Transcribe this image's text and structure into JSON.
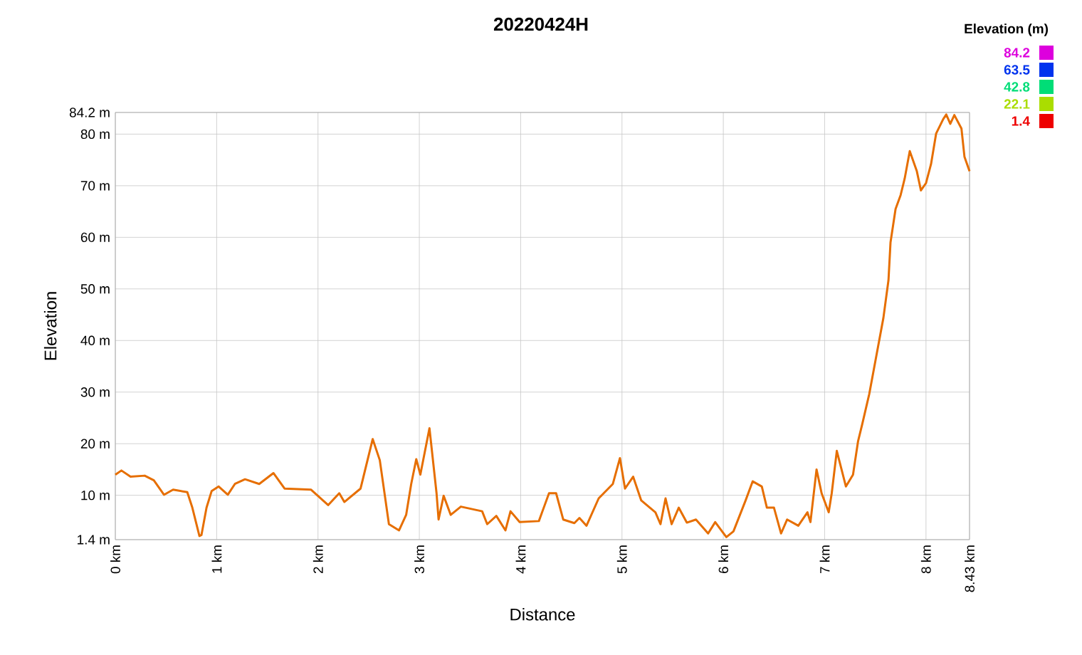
{
  "chart_data": {
    "type": "line",
    "title": "20220424H",
    "xlabel": "Distance",
    "ylabel": "Elevation",
    "clabel": "Elevation (m)",
    "x": [
      0,
      0.06,
      0.15,
      0.29,
      0.38,
      0.48,
      0.57,
      0.71,
      0.76,
      0.83,
      0.85,
      0.9,
      0.95,
      1.02,
      1.11,
      1.18,
      1.28,
      1.42,
      1.56,
      1.67,
      1.93,
      2.1,
      2.21,
      2.26,
      2.42,
      2.54,
      2.61,
      2.7,
      2.8,
      2.87,
      2.92,
      2.97,
      3.01,
      3.1,
      3.17,
      3.19,
      3.24,
      3.31,
      3.41,
      3.62,
      3.67,
      3.76,
      3.85,
      3.9,
      3.99,
      4.18,
      4.28,
      4.35,
      4.42,
      4.53,
      4.58,
      4.65,
      4.77,
      4.91,
      4.98,
      5.03,
      5.11,
      5.19,
      5.33,
      5.38,
      5.43,
      5.49,
      5.56,
      5.64,
      5.73,
      5.85,
      5.92,
      6.03,
      6.1,
      6.22,
      6.29,
      6.38,
      6.43,
      6.5,
      6.57,
      6.63,
      6.74,
      6.83,
      6.86,
      6.92,
      6.97,
      7.04,
      7.07,
      7.12,
      7.21,
      7.28,
      7.33,
      7.37,
      7.44,
      7.51,
      7.58,
      7.63,
      7.65,
      7.7,
      7.75,
      7.79,
      7.84,
      7.91,
      7.95,
      8.0,
      8.05,
      8.1,
      8.17,
      8.2,
      8.24,
      8.28,
      8.35,
      8.38,
      8.43
    ],
    "values": [
      14.0,
      14.8,
      13.6,
      13.8,
      12.9,
      10.1,
      11.1,
      10.6,
      7.6,
      2.1,
      2.3,
      7.6,
      10.8,
      11.7,
      10.1,
      12.2,
      13.1,
      12.2,
      14.3,
      11.3,
      11.1,
      8.1,
      10.4,
      8.7,
      11.3,
      20.9,
      16.8,
      4.4,
      3.2,
      6.2,
      12.2,
      17.0,
      14.0,
      23.0,
      10.4,
      5.3,
      9.9,
      6.2,
      7.8,
      6.9,
      4.4,
      6.0,
      3.2,
      6.9,
      4.8,
      5.0,
      10.4,
      10.4,
      5.3,
      4.6,
      5.6,
      4.1,
      9.4,
      12.2,
      17.2,
      11.3,
      13.6,
      9.0,
      6.7,
      4.4,
      9.4,
      4.4,
      7.6,
      4.7,
      5.3,
      2.6,
      4.8,
      1.9,
      3.0,
      9.0,
      12.7,
      11.7,
      7.6,
      7.6,
      2.6,
      5.3,
      4.1,
      6.7,
      4.8,
      15.0,
      10.4,
      6.7,
      10.4,
      18.6,
      11.7,
      14.0,
      20.5,
      23.7,
      29.6,
      37.0,
      44.4,
      51.7,
      59.0,
      65.5,
      68.2,
      71.4,
      76.7,
      72.8,
      69.1,
      70.5,
      74.2,
      80.1,
      82.9,
      83.8,
      82.0,
      83.7,
      81.1,
      75.6,
      72.8
    ],
    "xlim": [
      0,
      8.43
    ],
    "xticks": [
      {
        "value": 0,
        "label": "0 km"
      },
      {
        "value": 1,
        "label": "1 km"
      },
      {
        "value": 2,
        "label": "2 km"
      },
      {
        "value": 3,
        "label": "3 km"
      },
      {
        "value": 4,
        "label": "4 km"
      },
      {
        "value": 5,
        "label": "5 km"
      },
      {
        "value": 6,
        "label": "6 km"
      },
      {
        "value": 7,
        "label": "7 km"
      },
      {
        "value": 8,
        "label": "8 km"
      },
      {
        "value": 8.43,
        "label": "8.43 km"
      }
    ],
    "ylim": [
      1.4,
      84.2
    ],
    "yticks": [
      {
        "value": 1.4,
        "label": "1.4 m"
      },
      {
        "value": 10,
        "label": "10 m"
      },
      {
        "value": 20,
        "label": "20 m"
      },
      {
        "value": 30,
        "label": "30 m"
      },
      {
        "value": 40,
        "label": "40 m"
      },
      {
        "value": 50,
        "label": "50 m"
      },
      {
        "value": 60,
        "label": "60 m"
      },
      {
        "value": 70,
        "label": "70 m"
      },
      {
        "value": 80,
        "label": "80 m"
      },
      {
        "value": 84.2,
        "label": "84.2 m"
      }
    ],
    "cticks": [
      1.4,
      22.1,
      42.8,
      63.5,
      84.2
    ],
    "grid": true
  }
}
